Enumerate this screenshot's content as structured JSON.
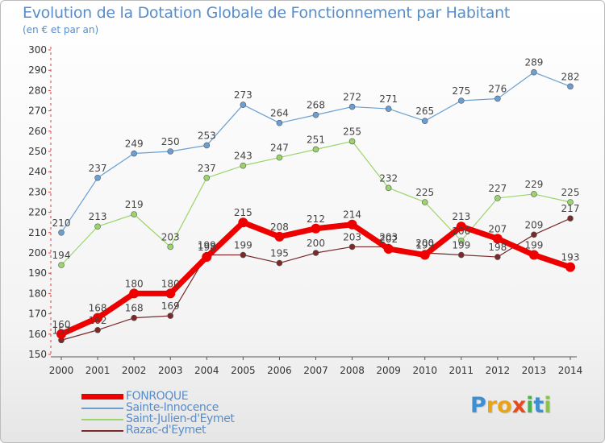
{
  "title": "Evolution de la Dotation Globale de Fonctionnement par Habitant",
  "subtitle": "(en € et par an)",
  "logo": {
    "text": "Proxiti",
    "letters": [
      {
        "ch": "P",
        "color": "#3d8fd1"
      },
      {
        "ch": "r",
        "color": "#e8a317"
      },
      {
        "ch": "o",
        "color": "#e8a317"
      },
      {
        "ch": "x",
        "color": "#e84a1f"
      },
      {
        "ch": "i",
        "color": "#4caf50"
      },
      {
        "ch": "t",
        "color": "#3d8fd1"
      },
      {
        "ch": "i",
        "color": "#8bc34a"
      }
    ]
  },
  "chart_data": {
    "type": "line",
    "x": [
      2000,
      2001,
      2002,
      2003,
      2004,
      2005,
      2006,
      2007,
      2008,
      2009,
      2010,
      2011,
      2012,
      2013,
      2014
    ],
    "ylim": [
      150,
      300
    ],
    "yticks": [
      150,
      160,
      170,
      180,
      190,
      200,
      210,
      220,
      230,
      240,
      250,
      260,
      270,
      280,
      290,
      300
    ],
    "grid": false,
    "legend_position": "bottom-left",
    "series": [
      {
        "name": "FONROQUE",
        "color": "#ee0000",
        "values": [
          160,
          168,
          180,
          180,
          198,
          215,
          208,
          212,
          214,
          202,
          199,
          213,
          207,
          199,
          193
        ]
      },
      {
        "name": "Sainte-Innocence",
        "color": "#6b9fd2",
        "values": [
          210,
          237,
          249,
          250,
          253,
          273,
          264,
          268,
          272,
          271,
          265,
          275,
          276,
          289,
          282
        ]
      },
      {
        "name": "Saint-Julien-d'Eymet",
        "color": "#9bd46b",
        "values": [
          194,
          213,
          219,
          203,
          237,
          243,
          247,
          251,
          255,
          232,
          225,
          206,
          227,
          229,
          225
        ]
      },
      {
        "name": "Razac-d'Eymet",
        "color": "#7a2a2a",
        "values": [
          157,
          162,
          168,
          169,
          199,
          199,
          195,
          200,
          203,
          203,
          200,
          199,
          198,
          209,
          217
        ]
      }
    ]
  }
}
